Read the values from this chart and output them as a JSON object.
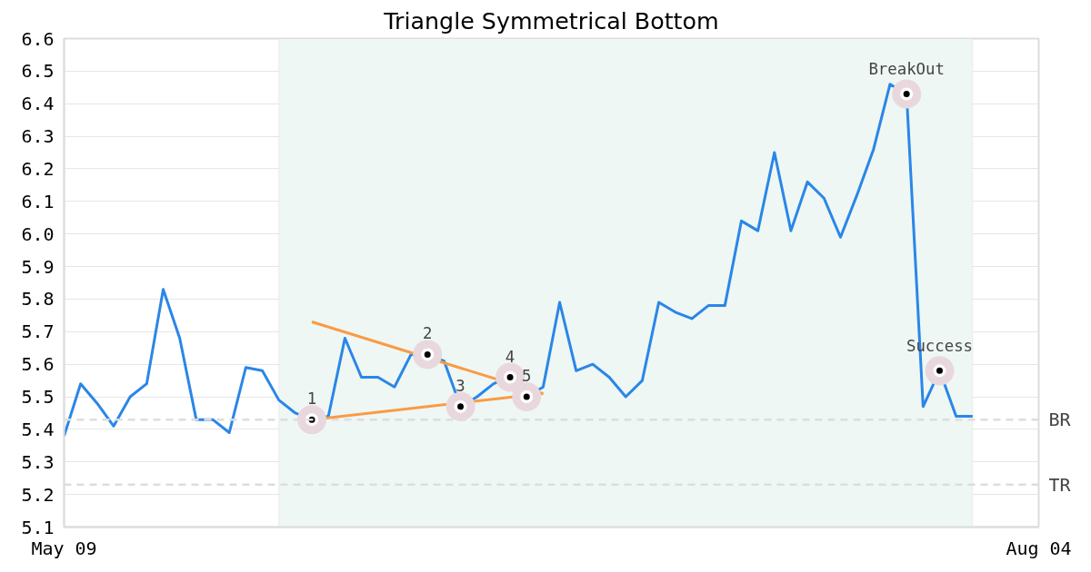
{
  "chart_data": {
    "type": "line",
    "title": "Triangle Symmetrical Bottom",
    "categories": [
      "May 09",
      null,
      null,
      null,
      null,
      null,
      null,
      null,
      null,
      null,
      null,
      null,
      null,
      null,
      null,
      null,
      null,
      null,
      null,
      null,
      null,
      null,
      null,
      null,
      null,
      null,
      null,
      null,
      null,
      null,
      null,
      null,
      null,
      null,
      null,
      null,
      null,
      null,
      null,
      null,
      null,
      null,
      null,
      null,
      null,
      null,
      null,
      null,
      null,
      null,
      null,
      null,
      null,
      null,
      null,
      null,
      null,
      null,
      null,
      "Aug 04"
    ],
    "series": [
      {
        "color": "#2a86e8",
        "values": [
          5.38,
          5.54,
          5.48,
          5.41,
          5.5,
          5.54,
          5.83,
          5.68,
          5.43,
          5.43,
          5.39,
          5.59,
          5.58,
          5.49,
          5.45,
          5.43,
          5.44,
          5.68,
          5.56,
          5.56,
          5.53,
          5.63,
          5.63,
          5.61,
          5.47,
          5.5,
          5.54,
          5.56,
          5.5,
          5.53,
          5.79,
          5.58,
          5.6,
          5.56,
          5.5,
          5.55,
          5.79,
          5.76,
          5.74,
          5.78,
          5.78,
          6.04,
          6.01,
          6.25,
          6.01,
          6.16,
          6.11,
          5.99,
          6.12,
          6.26,
          6.46,
          6.43,
          5.47,
          5.58,
          5.44,
          5.44,
          null,
          null,
          null,
          null
        ]
      },
      {
        "color": "#f99b45",
        "values": [
          null,
          null,
          null,
          null,
          null,
          null,
          null,
          null,
          null,
          null,
          null,
          null,
          null,
          null,
          null,
          5.73,
          null,
          null,
          null,
          null,
          null,
          null,
          null,
          null,
          null,
          null,
          null,
          null,
          null,
          5.51,
          null,
          null,
          null,
          null,
          null,
          null,
          null,
          null,
          null,
          null,
          null,
          null,
          null,
          null,
          null,
          null,
          null,
          null,
          null,
          null,
          null,
          null,
          null,
          null,
          null,
          null,
          null,
          null,
          null,
          null
        ]
      },
      {
        "color": "#f99b45",
        "values": [
          null,
          null,
          null,
          null,
          null,
          null,
          null,
          null,
          null,
          null,
          null,
          null,
          null,
          null,
          null,
          5.43,
          null,
          null,
          null,
          null,
          null,
          null,
          null,
          null,
          null,
          null,
          null,
          null,
          null,
          5.51,
          null,
          null,
          null,
          null,
          null,
          null,
          null,
          null,
          null,
          null,
          null,
          null,
          null,
          null,
          null,
          null,
          null,
          null,
          null,
          null,
          null,
          null,
          null,
          null,
          null,
          null,
          null,
          null,
          null,
          null
        ]
      },
      {
        "type": "scatter",
        "name": "1",
        "color": "#000000",
        "marker": "circle",
        "values": [
          null,
          null,
          null,
          null,
          null,
          null,
          null,
          null,
          null,
          null,
          null,
          null,
          null,
          null,
          null,
          5.43,
          null,
          null,
          null,
          null,
          null,
          null,
          null,
          null,
          null,
          null,
          null,
          null,
          null,
          null,
          null,
          null,
          null,
          null,
          null,
          null,
          null,
          null,
          null,
          null,
          null,
          null,
          null,
          null,
          null,
          null,
          null,
          null,
          null,
          null,
          null,
          null,
          null,
          null,
          null,
          null,
          null,
          null,
          null,
          null
        ]
      },
      {
        "type": "scatter",
        "name": "2",
        "color": "#000000",
        "marker": "circle",
        "values": [
          null,
          null,
          null,
          null,
          null,
          null,
          null,
          null,
          null,
          null,
          null,
          null,
          null,
          null,
          null,
          null,
          null,
          null,
          null,
          null,
          null,
          null,
          5.63,
          null,
          null,
          null,
          null,
          null,
          null,
          null,
          null,
          null,
          null,
          null,
          null,
          null,
          null,
          null,
          null,
          null,
          null,
          null,
          null,
          null,
          null,
          null,
          null,
          null,
          null,
          null,
          null,
          null,
          null,
          null,
          null,
          null,
          null,
          null,
          null,
          null
        ]
      },
      {
        "type": "scatter",
        "name": "3",
        "color": "#000000",
        "marker": "circle",
        "values": [
          null,
          null,
          null,
          null,
          null,
          null,
          null,
          null,
          null,
          null,
          null,
          null,
          null,
          null,
          null,
          null,
          null,
          null,
          null,
          null,
          null,
          null,
          null,
          null,
          5.47,
          null,
          null,
          null,
          null,
          null,
          null,
          null,
          null,
          null,
          null,
          null,
          null,
          null,
          null,
          null,
          null,
          null,
          null,
          null,
          null,
          null,
          null,
          null,
          null,
          null,
          null,
          null,
          null,
          null,
          null,
          null,
          null,
          null,
          null,
          null
        ]
      },
      {
        "type": "scatter",
        "name": "4",
        "color": "#000000",
        "marker": "circle",
        "values": [
          null,
          null,
          null,
          null,
          null,
          null,
          null,
          null,
          null,
          null,
          null,
          null,
          null,
          null,
          null,
          null,
          null,
          null,
          null,
          null,
          null,
          null,
          null,
          null,
          null,
          null,
          null,
          5.56,
          null,
          null,
          null,
          null,
          null,
          null,
          null,
          null,
          null,
          null,
          null,
          null,
          null,
          null,
          null,
          null,
          null,
          null,
          null,
          null,
          null,
          null,
          null,
          null,
          null,
          null,
          null,
          null,
          null,
          null,
          null,
          null
        ]
      },
      {
        "type": "scatter",
        "name": "5",
        "color": "#000000",
        "marker": "circle",
        "values": [
          null,
          null,
          null,
          null,
          null,
          null,
          null,
          null,
          null,
          null,
          null,
          null,
          null,
          null,
          null,
          null,
          null,
          null,
          null,
          null,
          null,
          null,
          null,
          null,
          null,
          null,
          null,
          null,
          5.5,
          null,
          null,
          null,
          null,
          null,
          null,
          null,
          null,
          null,
          null,
          null,
          null,
          null,
          null,
          null,
          null,
          null,
          null,
          null,
          null,
          null,
          null,
          null,
          null,
          null,
          null,
          null,
          null,
          null,
          null,
          null
        ]
      },
      {
        "type": "scatter",
        "name": "BreakOut",
        "color": "#000000",
        "marker": "circle",
        "values": [
          null,
          null,
          null,
          null,
          null,
          null,
          null,
          null,
          null,
          null,
          null,
          null,
          null,
          null,
          null,
          null,
          null,
          null,
          null,
          null,
          null,
          null,
          null,
          null,
          null,
          null,
          null,
          null,
          null,
          null,
          null,
          null,
          null,
          null,
          null,
          null,
          null,
          null,
          null,
          null,
          null,
          null,
          null,
          null,
          null,
          null,
          null,
          null,
          null,
          null,
          null,
          6.43,
          null,
          null,
          null,
          null,
          null,
          null,
          null,
          null
        ]
      },
      {
        "type": "scatter",
        "name": "Success",
        "color": "#000000",
        "marker": "circle",
        "values": [
          null,
          null,
          null,
          null,
          null,
          null,
          null,
          null,
          null,
          null,
          null,
          null,
          null,
          null,
          null,
          null,
          null,
          null,
          null,
          null,
          null,
          null,
          null,
          null,
          null,
          null,
          null,
          null,
          null,
          null,
          null,
          null,
          null,
          null,
          null,
          null,
          null,
          null,
          null,
          null,
          null,
          null,
          null,
          null,
          null,
          null,
          null,
          null,
          null,
          null,
          null,
          null,
          null,
          5.58,
          null,
          null,
          null,
          null,
          null,
          null
        ]
      }
    ],
    "ylim": [
      5.1,
      6.6
    ],
    "yticks": [
      {
        "value": 5.1,
        "label": "5.1"
      },
      {
        "value": 5.2,
        "label": "5.2"
      },
      {
        "value": 5.3,
        "label": "5.3"
      },
      {
        "value": 5.4,
        "label": "5.4"
      },
      {
        "value": 5.5,
        "label": "5.5"
      },
      {
        "value": 5.6,
        "label": "5.6"
      },
      {
        "value": 5.7,
        "label": "5.7"
      },
      {
        "value": 5.8,
        "label": "5.8"
      },
      {
        "value": 5.9,
        "label": "5.9"
      },
      {
        "value": 6.0,
        "label": "6.0"
      },
      {
        "value": 6.1,
        "label": "6.1"
      },
      {
        "value": 6.2,
        "label": "6.2"
      },
      {
        "value": 6.3,
        "label": "6.3"
      },
      {
        "value": 6.4,
        "label": "6.4"
      },
      {
        "value": 6.5,
        "label": "6.5"
      },
      {
        "value": 6.6,
        "label": "6.6"
      }
    ],
    "grid": "y",
    "line_style": "solid",
    "ref_lines": [
      {
        "axis": "y",
        "value": 5.43,
        "label": "BR",
        "color": "#dddddd",
        "line_style": "dashed"
      },
      {
        "axis": "y",
        "value": 5.23,
        "label": "TR",
        "color": "#dddddd",
        "line_style": "dashed"
      }
    ]
  }
}
